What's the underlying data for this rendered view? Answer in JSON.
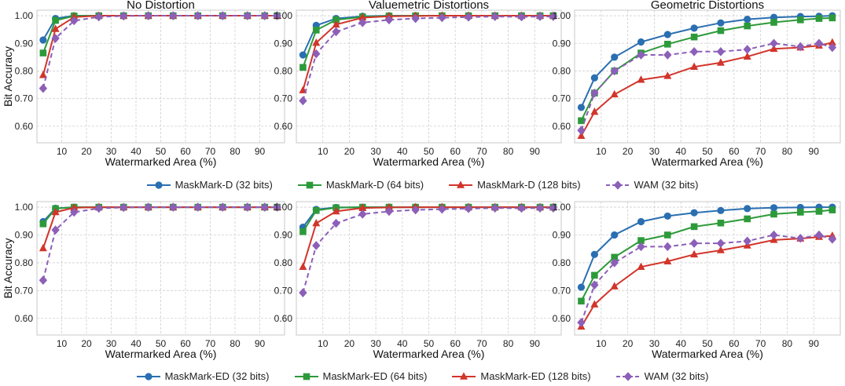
{
  "colors": {
    "blue": "#2a6fb1",
    "green": "#2d9a3a",
    "red": "#d1352b",
    "purple": "#8c5fb8"
  },
  "chart_data": [
    {
      "type": "line",
      "title": "No Distortion",
      "xlabel": "Watermarked Area (%)",
      "ylabel": "Bit Accuracy",
      "ylim": [
        0.54,
        1.02
      ],
      "xlim": [
        0,
        100
      ],
      "xticks": [
        "10",
        "20",
        "30",
        "40",
        "50",
        "60",
        "70",
        "80",
        "90"
      ],
      "yticks": [
        "0.60",
        "0.70",
        "0.80",
        "0.90",
        "1.00"
      ],
      "grid": true,
      "x": [
        2.5,
        7.5,
        15,
        25,
        35,
        45,
        55,
        65,
        75,
        85,
        92,
        97
      ],
      "series": [
        {
          "name": "MaskMark-D (32 bits)",
          "values": [
            0.912,
            0.99,
            1.0,
            1.0,
            1.0,
            1.0,
            1.0,
            1.0,
            1.0,
            1.0,
            1.0,
            1.0
          ]
        },
        {
          "name": "MaskMark-D (64 bits)",
          "values": [
            0.865,
            0.983,
            0.999,
            1.0,
            1.0,
            1.0,
            1.0,
            1.0,
            1.0,
            1.0,
            1.0,
            1.0
          ]
        },
        {
          "name": "MaskMark-D (128 bits)",
          "values": [
            0.785,
            0.952,
            0.995,
            1.0,
            1.0,
            1.0,
            1.0,
            1.0,
            1.0,
            1.0,
            1.0,
            1.0
          ]
        },
        {
          "name": "WAM (32 bits)",
          "values": [
            0.737,
            0.918,
            0.982,
            0.996,
            0.999,
            1.0,
            1.0,
            1.0,
            1.0,
            1.0,
            1.0,
            1.0
          ]
        }
      ]
    },
    {
      "type": "line",
      "title": "Valuemetric Distortions",
      "xlabel": "Watermarked Area (%)",
      "ylabel": "",
      "ylim": [
        0.54,
        1.02
      ],
      "xlim": [
        0,
        100
      ],
      "xticks": [
        "10",
        "20",
        "30",
        "40",
        "50",
        "60",
        "70",
        "80",
        "90"
      ],
      "yticks": [
        "0.60",
        "0.70",
        "0.80",
        "0.90",
        "1.00"
      ],
      "grid": true,
      "x": [
        2.5,
        7.5,
        15,
        25,
        35,
        45,
        55,
        65,
        75,
        85,
        92,
        97
      ],
      "series": [
        {
          "name": "MaskMark-D (32 bits)",
          "values": [
            0.858,
            0.965,
            0.99,
            0.998,
            1.0,
            1.0,
            1.0,
            1.0,
            1.0,
            1.0,
            1.0,
            1.0
          ]
        },
        {
          "name": "MaskMark-D (64 bits)",
          "values": [
            0.813,
            0.948,
            0.985,
            0.996,
            0.999,
            1.0,
            1.0,
            1.0,
            1.0,
            1.0,
            1.0,
            1.0
          ]
        },
        {
          "name": "MaskMark-D (128 bits)",
          "values": [
            0.73,
            0.902,
            0.968,
            0.993,
            0.998,
            0.999,
            1.0,
            1.0,
            1.0,
            1.0,
            1.0,
            1.0
          ]
        },
        {
          "name": "WAM (32 bits)",
          "values": [
            0.692,
            0.862,
            0.942,
            0.975,
            0.985,
            0.99,
            0.993,
            0.995,
            0.997,
            0.996,
            0.997,
            0.997
          ]
        }
      ]
    },
    {
      "type": "line",
      "title": "Geometric Distortions",
      "xlabel": "Watermarked Area (%)",
      "ylabel": "",
      "ylim": [
        0.54,
        1.02
      ],
      "xlim": [
        0,
        100
      ],
      "xticks": [
        "10",
        "20",
        "30",
        "40",
        "50",
        "60",
        "70",
        "80",
        "90"
      ],
      "yticks": [
        "0.60",
        "0.70",
        "0.80",
        "0.90",
        "1.00"
      ],
      "grid": true,
      "x": [
        2.5,
        7.5,
        15,
        25,
        35,
        45,
        55,
        65,
        75,
        85,
        92,
        97
      ],
      "series": [
        {
          "name": "MaskMark-D (32 bits)",
          "values": [
            0.668,
            0.775,
            0.85,
            0.905,
            0.932,
            0.955,
            0.974,
            0.987,
            0.994,
            0.997,
            0.998,
            1.0
          ]
        },
        {
          "name": "MaskMark-D (64 bits)",
          "values": [
            0.62,
            0.72,
            0.8,
            0.865,
            0.897,
            0.923,
            0.946,
            0.963,
            0.976,
            0.985,
            0.99,
            0.992
          ]
        },
        {
          "name": "MaskMark-D (128 bits)",
          "values": [
            0.565,
            0.652,
            0.715,
            0.768,
            0.782,
            0.815,
            0.83,
            0.852,
            0.88,
            0.885,
            0.892,
            0.903
          ]
        },
        {
          "name": "WAM (32 bits)",
          "values": [
            0.585,
            0.72,
            0.8,
            0.858,
            0.858,
            0.87,
            0.87,
            0.878,
            0.9,
            0.888,
            0.9,
            0.885
          ]
        }
      ]
    },
    {
      "type": "line",
      "title": "",
      "xlabel": "Watermarked Area (%)",
      "ylabel": "Bit Accuracy",
      "ylim": [
        0.54,
        1.02
      ],
      "xlim": [
        0,
        100
      ],
      "xticks": [
        "10",
        "20",
        "30",
        "40",
        "50",
        "60",
        "70",
        "80",
        "90"
      ],
      "yticks": [
        "0.60",
        "0.70",
        "0.80",
        "0.90",
        "1.00"
      ],
      "grid": true,
      "x": [
        2.5,
        7.5,
        15,
        25,
        35,
        45,
        55,
        65,
        75,
        85,
        92,
        97
      ],
      "series": [
        {
          "name": "MaskMark-ED (32 bits)",
          "values": [
            0.948,
            0.996,
            1.0,
            1.0,
            1.0,
            1.0,
            1.0,
            1.0,
            1.0,
            1.0,
            1.0,
            1.0
          ]
        },
        {
          "name": "MaskMark-ED (64 bits)",
          "values": [
            0.94,
            0.995,
            1.0,
            1.0,
            1.0,
            1.0,
            1.0,
            1.0,
            1.0,
            1.0,
            1.0,
            1.0
          ]
        },
        {
          "name": "MaskMark-ED (128 bits)",
          "values": [
            0.852,
            0.982,
            0.998,
            1.0,
            1.0,
            1.0,
            1.0,
            1.0,
            1.0,
            1.0,
            1.0,
            1.0
          ]
        },
        {
          "name": "WAM (32 bits)",
          "values": [
            0.737,
            0.918,
            0.982,
            0.996,
            0.999,
            1.0,
            1.0,
            1.0,
            1.0,
            1.0,
            1.0,
            1.0
          ]
        }
      ]
    },
    {
      "type": "line",
      "title": "",
      "xlabel": "Watermarked Area (%)",
      "ylabel": "",
      "ylim": [
        0.54,
        1.02
      ],
      "xlim": [
        0,
        100
      ],
      "xticks": [
        "10",
        "20",
        "30",
        "40",
        "50",
        "60",
        "70",
        "80",
        "90"
      ],
      "yticks": [
        "0.60",
        "0.70",
        "0.80",
        "0.90",
        "1.00"
      ],
      "grid": true,
      "x": [
        2.5,
        7.5,
        15,
        25,
        35,
        45,
        55,
        65,
        75,
        85,
        92,
        97
      ],
      "series": [
        {
          "name": "MaskMark-ED (32 bits)",
          "values": [
            0.928,
            0.992,
            0.999,
            1.0,
            1.0,
            1.0,
            1.0,
            1.0,
            1.0,
            1.0,
            1.0,
            1.0
          ]
        },
        {
          "name": "MaskMark-ED (64 bits)",
          "values": [
            0.912,
            0.988,
            0.998,
            1.0,
            1.0,
            1.0,
            1.0,
            1.0,
            1.0,
            1.0,
            1.0,
            1.0
          ]
        },
        {
          "name": "MaskMark-ED (128 bits)",
          "values": [
            0.785,
            0.942,
            0.985,
            0.997,
            0.999,
            1.0,
            1.0,
            1.0,
            1.0,
            1.0,
            1.0,
            1.0
          ]
        },
        {
          "name": "WAM (32 bits)",
          "values": [
            0.692,
            0.862,
            0.942,
            0.975,
            0.985,
            0.99,
            0.993,
            0.995,
            0.997,
            0.996,
            0.997,
            0.997
          ]
        }
      ]
    },
    {
      "type": "line",
      "title": "",
      "xlabel": "Watermarked Area (%)",
      "ylabel": "",
      "ylim": [
        0.54,
        1.02
      ],
      "xlim": [
        0,
        100
      ],
      "xticks": [
        "10",
        "20",
        "30",
        "40",
        "50",
        "60",
        "70",
        "80",
        "90"
      ],
      "yticks": [
        "0.60",
        "0.70",
        "0.80",
        "0.90",
        "1.00"
      ],
      "grid": true,
      "x": [
        2.5,
        7.5,
        15,
        25,
        35,
        45,
        55,
        65,
        75,
        85,
        92,
        97
      ],
      "series": [
        {
          "name": "MaskMark-ED (32 bits)",
          "values": [
            0.712,
            0.83,
            0.9,
            0.948,
            0.968,
            0.98,
            0.988,
            0.995,
            0.998,
            0.999,
            1.0,
            1.0
          ]
        },
        {
          "name": "MaskMark-ED (64 bits)",
          "values": [
            0.662,
            0.755,
            0.82,
            0.88,
            0.9,
            0.93,
            0.943,
            0.958,
            0.975,
            0.982,
            0.985,
            0.99
          ]
        },
        {
          "name": "MaskMark-ED (128 bits)",
          "values": [
            0.57,
            0.65,
            0.715,
            0.785,
            0.805,
            0.83,
            0.845,
            0.862,
            0.882,
            0.887,
            0.893,
            0.897
          ]
        },
        {
          "name": "WAM (32 bits)",
          "values": [
            0.585,
            0.72,
            0.8,
            0.858,
            0.858,
            0.87,
            0.87,
            0.878,
            0.9,
            0.888,
            0.9,
            0.885
          ]
        }
      ]
    }
  ],
  "legends": [
    {
      "items": [
        {
          "label": "MaskMark-D (32 bits)",
          "color": "#2a6fb1",
          "marker": "circle",
          "dash": false
        },
        {
          "label": "MaskMark-D (64 bits)",
          "color": "#2d9a3a",
          "marker": "square",
          "dash": false
        },
        {
          "label": "MaskMark-D (128 bits)",
          "color": "#d1352b",
          "marker": "triangle",
          "dash": false
        },
        {
          "label": "WAM (32 bits)",
          "color": "#8c5fb8",
          "marker": "diamond",
          "dash": true
        }
      ]
    },
    {
      "items": [
        {
          "label": "MaskMark-ED (32 bits)",
          "color": "#2a6fb1",
          "marker": "circle",
          "dash": false
        },
        {
          "label": "MaskMark-ED (64 bits)",
          "color": "#2d9a3a",
          "marker": "square",
          "dash": false
        },
        {
          "label": "MaskMark-ED (128 bits)",
          "color": "#d1352b",
          "marker": "triangle",
          "dash": false
        },
        {
          "label": "WAM (32 bits)",
          "color": "#8c5fb8",
          "marker": "diamond",
          "dash": true
        }
      ]
    }
  ]
}
